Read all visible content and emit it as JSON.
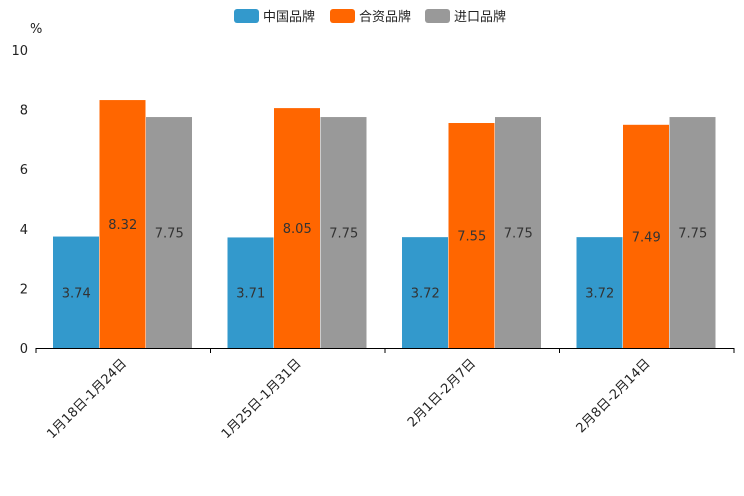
{
  "chart_data": {
    "type": "bar",
    "ylabel": "%",
    "ylim": [
      0,
      10
    ],
    "yticks": [
      0,
      2,
      4,
      6,
      8,
      10
    ],
    "categories": [
      "1月18日-1月24日",
      "1月25日-1月31日",
      "2月1日-2月7日",
      "2月8日-2月14日"
    ],
    "series": [
      {
        "name": "中国品牌",
        "color": "#3399cc",
        "values": [
          3.74,
          3.71,
          3.72,
          3.72
        ]
      },
      {
        "name": "合资品牌",
        "color": "#ff6600",
        "values": [
          8.32,
          8.05,
          7.55,
          7.49
        ]
      },
      {
        "name": "进口品牌",
        "color": "#999999",
        "values": [
          7.75,
          7.75,
          7.75,
          7.75
        ]
      }
    ],
    "legend": "top-center",
    "grid": false
  }
}
